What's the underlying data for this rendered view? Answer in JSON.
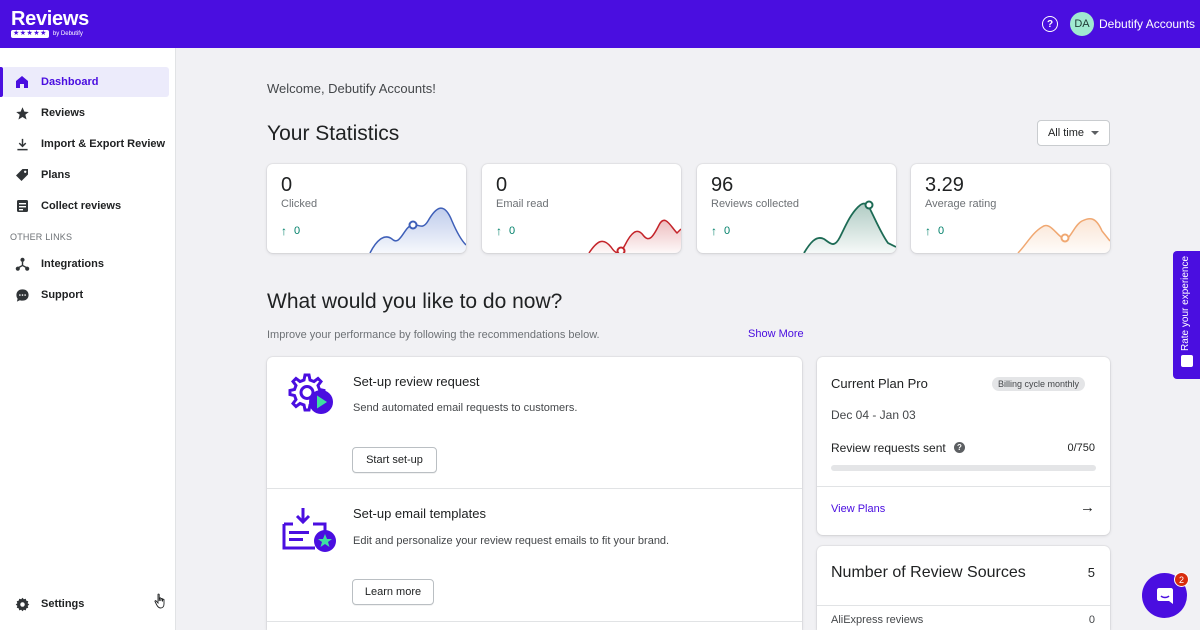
{
  "app": {
    "logo_text": "Reviews",
    "logo_by": "by Debutify",
    "accent_color": "#4a0ee0"
  },
  "header": {
    "help_icon": "question-circle-icon",
    "avatar_initials": "DA",
    "account_name": "Debutify Accounts"
  },
  "sidebar": {
    "items": [
      {
        "label": "Dashboard",
        "icon": "home-icon",
        "active": true
      },
      {
        "label": "Reviews",
        "icon": "star-icon"
      },
      {
        "label": "Import & Export Review",
        "icon": "download-icon"
      },
      {
        "label": "Plans",
        "icon": "tag-icon"
      },
      {
        "label": "Collect reviews",
        "icon": "clipboard-icon"
      }
    ],
    "section_label": "OTHER LINKS",
    "other_items": [
      {
        "label": "Integrations",
        "icon": "integrations-icon"
      },
      {
        "label": "Support",
        "icon": "chat-bubble-icon"
      }
    ],
    "settings_label": "Settings"
  },
  "main": {
    "welcome": "Welcome, Debutify Accounts!",
    "stats_title": "Your Statistics",
    "filter_label": "All time",
    "stats": [
      {
        "value": "0",
        "label": "Clicked",
        "delta": "0",
        "color": "#4a6fc8"
      },
      {
        "value": "0",
        "label": "Email read",
        "delta": "0",
        "color": "#c4242a"
      },
      {
        "value": "96",
        "label": "Reviews collected",
        "delta": "0",
        "color": "#1d6b55"
      },
      {
        "value": "3.29",
        "label": "Average rating",
        "delta": "0",
        "color": "#f0a872"
      }
    ],
    "do_title": "What would you like to do now?",
    "do_subtitle": "Improve your performance by following the recommendations below.",
    "show_more": "Show More",
    "recommendations": [
      {
        "title": "Set-up review request",
        "desc": "Send automated email requests to customers.",
        "button": "Start set-up"
      },
      {
        "title": "Set-up email templates",
        "desc": "Edit and personalize your review request emails to fit your brand.",
        "button": "Learn more"
      }
    ]
  },
  "plan": {
    "title": "Current Plan Pro",
    "badge": "Billing cycle monthly",
    "dates": "Dec 04 - Jan 03",
    "requests_label": "Review requests sent",
    "requests_count": "0/750",
    "requests_fraction": 0,
    "link": "View Plans"
  },
  "sources": {
    "title": "Number of Review Sources",
    "count": "5",
    "items": [
      {
        "name": "AliExpress reviews",
        "count": "0"
      }
    ]
  },
  "rate_tab": "Rate your experience",
  "chat": {
    "badge": "2"
  }
}
